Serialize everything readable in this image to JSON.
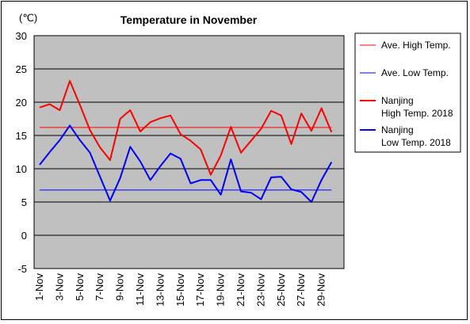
{
  "chart_data": {
    "type": "line",
    "title": "Temperature in November",
    "unit": "(℃)",
    "ylim": [
      -5,
      30
    ],
    "yticks": [
      30,
      25,
      20,
      15,
      10,
      5,
      0,
      -5
    ],
    "grid": "horizontal",
    "legend": "right",
    "plot_bg": "#c0c0c0",
    "x_tick_labels": [
      "1-Nov",
      "3-Nov",
      "5-Nov",
      "7-Nov",
      "9-Nov",
      "11-Nov",
      "13-Nov",
      "15-Nov",
      "17-Nov",
      "19-Nov",
      "21-Nov",
      "23-Nov",
      "25-Nov",
      "27-Nov",
      "29-Nov"
    ],
    "days": 30,
    "series": [
      {
        "name": "Ave. High Temp.",
        "color": "#ff0000",
        "width": 1,
        "values": [
          16.2,
          16.2,
          16.2,
          16.2,
          16.2,
          16.2,
          16.2,
          16.2,
          16.2,
          16.2,
          16.2,
          16.2,
          16.2,
          16.2,
          16.2,
          16.2,
          16.2,
          16.2,
          16.2,
          16.2,
          16.2,
          16.2,
          16.2,
          16.2,
          16.2,
          16.2,
          16.2,
          16.2,
          16.2,
          16.2
        ]
      },
      {
        "name": "Ave. Low Temp.",
        "color": "#0000ff",
        "width": 1,
        "values": [
          6.8,
          6.8,
          6.8,
          6.8,
          6.8,
          6.8,
          6.8,
          6.8,
          6.8,
          6.8,
          6.8,
          6.8,
          6.8,
          6.8,
          6.8,
          6.8,
          6.8,
          6.8,
          6.8,
          6.8,
          6.8,
          6.8,
          6.8,
          6.8,
          6.8,
          6.8,
          6.8,
          6.8,
          6.8,
          6.8
        ]
      },
      {
        "name": "Nanjing\nHigh Temp. 2018",
        "color": "#ff0000",
        "width": 2,
        "values": [
          19.2,
          19.7,
          18.8,
          23.2,
          19.6,
          15.8,
          13.2,
          11.3,
          17.5,
          18.8,
          15.6,
          17.0,
          17.6,
          18.0,
          15.2,
          14.2,
          12.9,
          9.1,
          12.0,
          16.3,
          12.4,
          14.2,
          16.0,
          18.7,
          18.0,
          13.7,
          18.3,
          15.7,
          19.1,
          15.5
        ]
      },
      {
        "name": "Nanjing\nLow Temp. 2018",
        "color": "#0000ff",
        "width": 2,
        "values": [
          10.6,
          12.5,
          14.3,
          16.5,
          14.3,
          12.4,
          8.8,
          5.2,
          8.6,
          13.3,
          11.1,
          8.3,
          10.4,
          12.3,
          11.5,
          7.8,
          8.3,
          8.3,
          6.1,
          11.4,
          6.6,
          6.4,
          5.4,
          8.7,
          8.8,
          6.9,
          6.5,
          5.0,
          8.3,
          11.0
        ]
      }
    ]
  }
}
